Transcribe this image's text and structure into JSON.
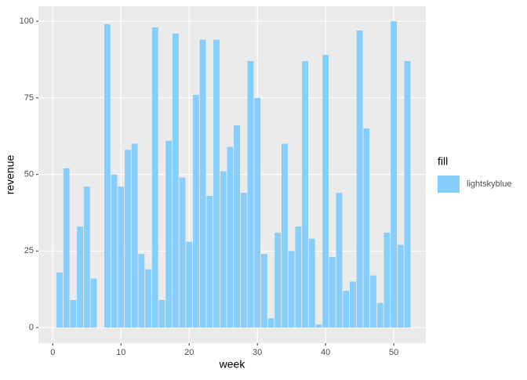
{
  "chart_data": {
    "type": "bar",
    "x_label": "week",
    "y_label": "revenue",
    "legend_title": "fill",
    "legend": "right",
    "x": [
      1,
      2,
      3,
      4,
      5,
      6,
      7,
      8,
      9,
      10,
      11,
      12,
      13,
      14,
      15,
      16,
      17,
      18,
      19,
      20,
      21,
      22,
      23,
      24,
      25,
      26,
      27,
      28,
      29,
      30,
      31,
      32,
      33,
      34,
      35,
      36,
      37,
      38,
      39,
      40,
      41,
      42,
      43,
      44,
      45,
      46,
      47,
      48,
      49,
      50,
      51,
      52
    ],
    "series": [
      {
        "name": "lightskyblue",
        "color": "#87cefa",
        "values": [
          18,
          52,
          9,
          33,
          46,
          16,
          0,
          99,
          50,
          46,
          58,
          60,
          24,
          19,
          98,
          9,
          61,
          96,
          49,
          28,
          76,
          94,
          43,
          94,
          51,
          59,
          66,
          44,
          87,
          75,
          24,
          3,
          31,
          60,
          25,
          33,
          87,
          29,
          1,
          89,
          23,
          44,
          12,
          15,
          97,
          65,
          17,
          8,
          31,
          100,
          27,
          87
        ]
      }
    ],
    "xlim": [
      -2.1,
      54.7
    ],
    "xticks": [
      0,
      10,
      20,
      30,
      40,
      50
    ],
    "ylim": [
      -5.1,
      104.9
    ],
    "yticks": [
      0,
      25,
      50,
      75,
      100
    ],
    "grid": true
  }
}
